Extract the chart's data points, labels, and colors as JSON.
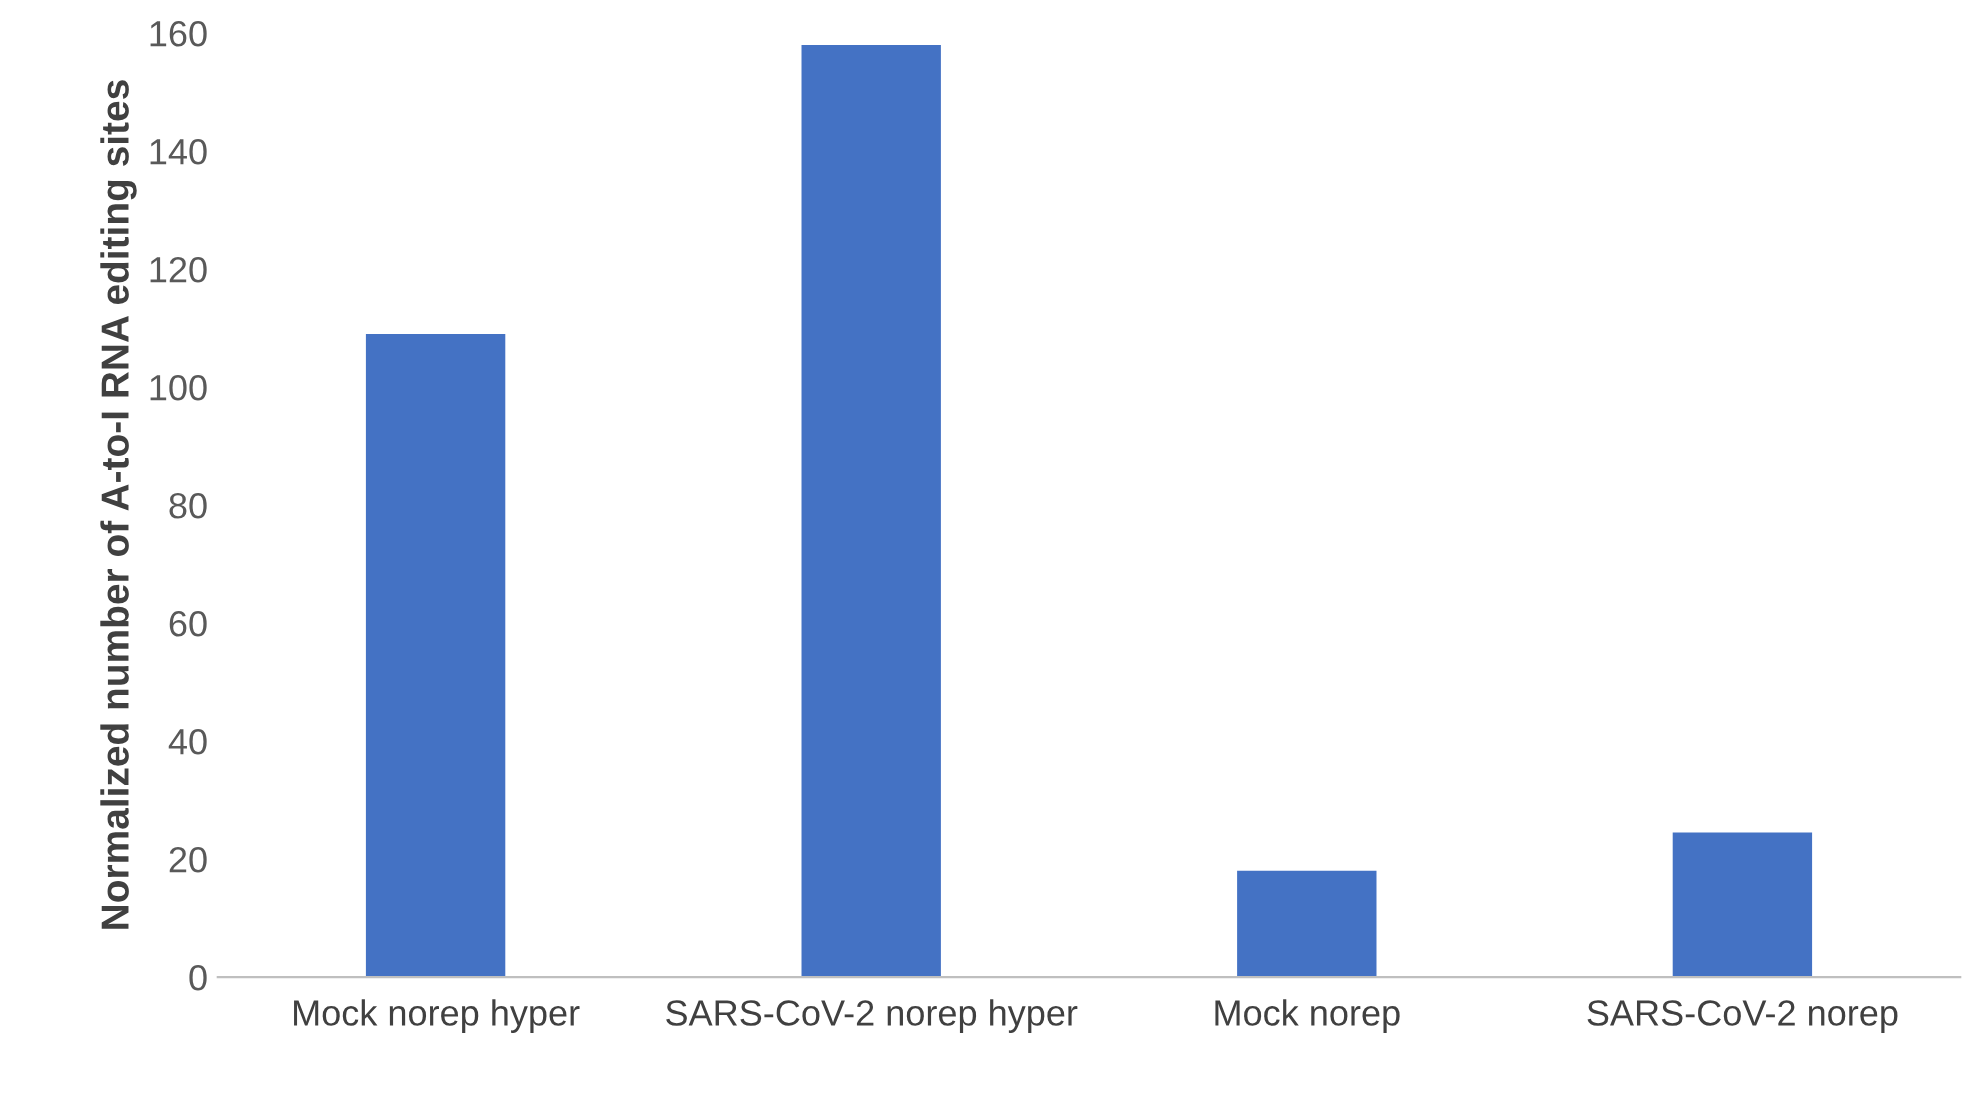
{
  "chart_data": {
    "type": "bar",
    "ylabel": "Normalized number of A-to-I RNA editing sites",
    "categories": [
      "Mock norep hyper",
      "SARS-CoV-2 norep hyper",
      "Mock norep",
      "SARS-CoV-2 norep"
    ],
    "values": [
      109,
      158,
      18,
      24.5
    ],
    "color": "#4472c4",
    "ylim": [
      0,
      160
    ],
    "yticks": [
      0,
      20,
      40,
      60,
      80,
      100,
      120,
      140,
      160
    ],
    "grid": false
  }
}
